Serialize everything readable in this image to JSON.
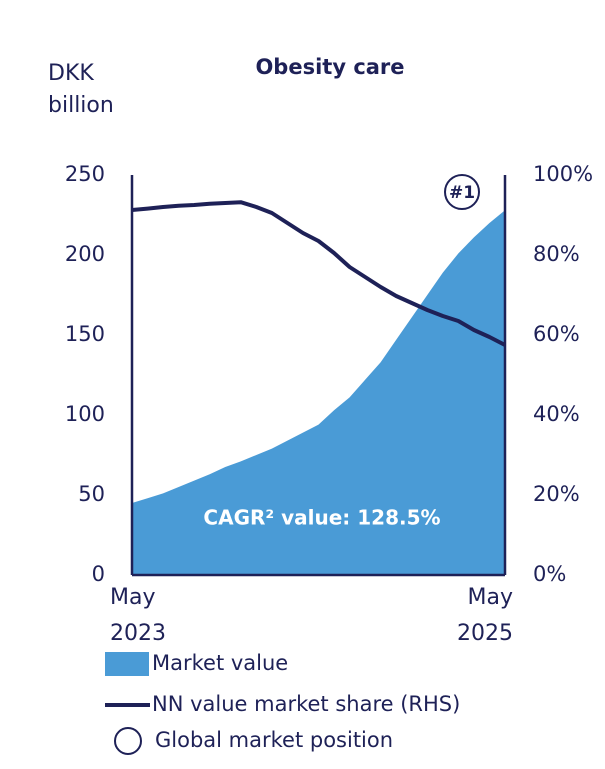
{
  "chart_data": {
    "type": "area_line",
    "title": "Obesity care",
    "y_label": "DKK billion",
    "categories": [
      "May 2023",
      null,
      null,
      null,
      null,
      null,
      null,
      null,
      null,
      null,
      null,
      null,
      null,
      null,
      null,
      null,
      null,
      null,
      null,
      null,
      null,
      null,
      null,
      null,
      "May 2025"
    ],
    "series": [
      {
        "name": "Market value",
        "color": "#4a9bd6",
        "kind": "area",
        "axis": "y",
        "values": [
          45,
          48,
          51,
          55,
          59,
          63,
          67.5,
          71,
          75,
          79,
          84,
          89,
          94,
          103,
          111,
          122,
          133,
          147,
          161,
          175,
          189,
          201,
          211,
          220,
          228
        ]
      },
      {
        "name": "NN value market share (RHS)",
        "color": "#1e2157",
        "kind": "line",
        "axis": "y2",
        "values": [
          91.25,
          91.6,
          92,
          92.3,
          92.5,
          92.8,
          93,
          93.2,
          92,
          90.5,
          88,
          85.5,
          83.5,
          80.5,
          77,
          74.5,
          72,
          69.75,
          68,
          66.25,
          64.75,
          63.5,
          61.25,
          59.5,
          57.5
        ]
      }
    ],
    "ylim": [
      0,
      250
    ],
    "yticks": [
      0,
      50,
      100,
      150,
      200,
      250
    ],
    "y2lim": [
      0,
      100
    ],
    "y2ticks": [
      {
        "value": 0,
        "label": "0%"
      },
      {
        "value": 20,
        "label": "20%"
      },
      {
        "value": 40,
        "label": "40%"
      },
      {
        "value": 60,
        "label": "60%"
      },
      {
        "value": 80,
        "label": "80%"
      },
      {
        "value": 100,
        "label": "100%"
      }
    ],
    "annotation": "CAGR² value: 128.5%",
    "position_label": "#1",
    "position_legend": "Global market position"
  }
}
